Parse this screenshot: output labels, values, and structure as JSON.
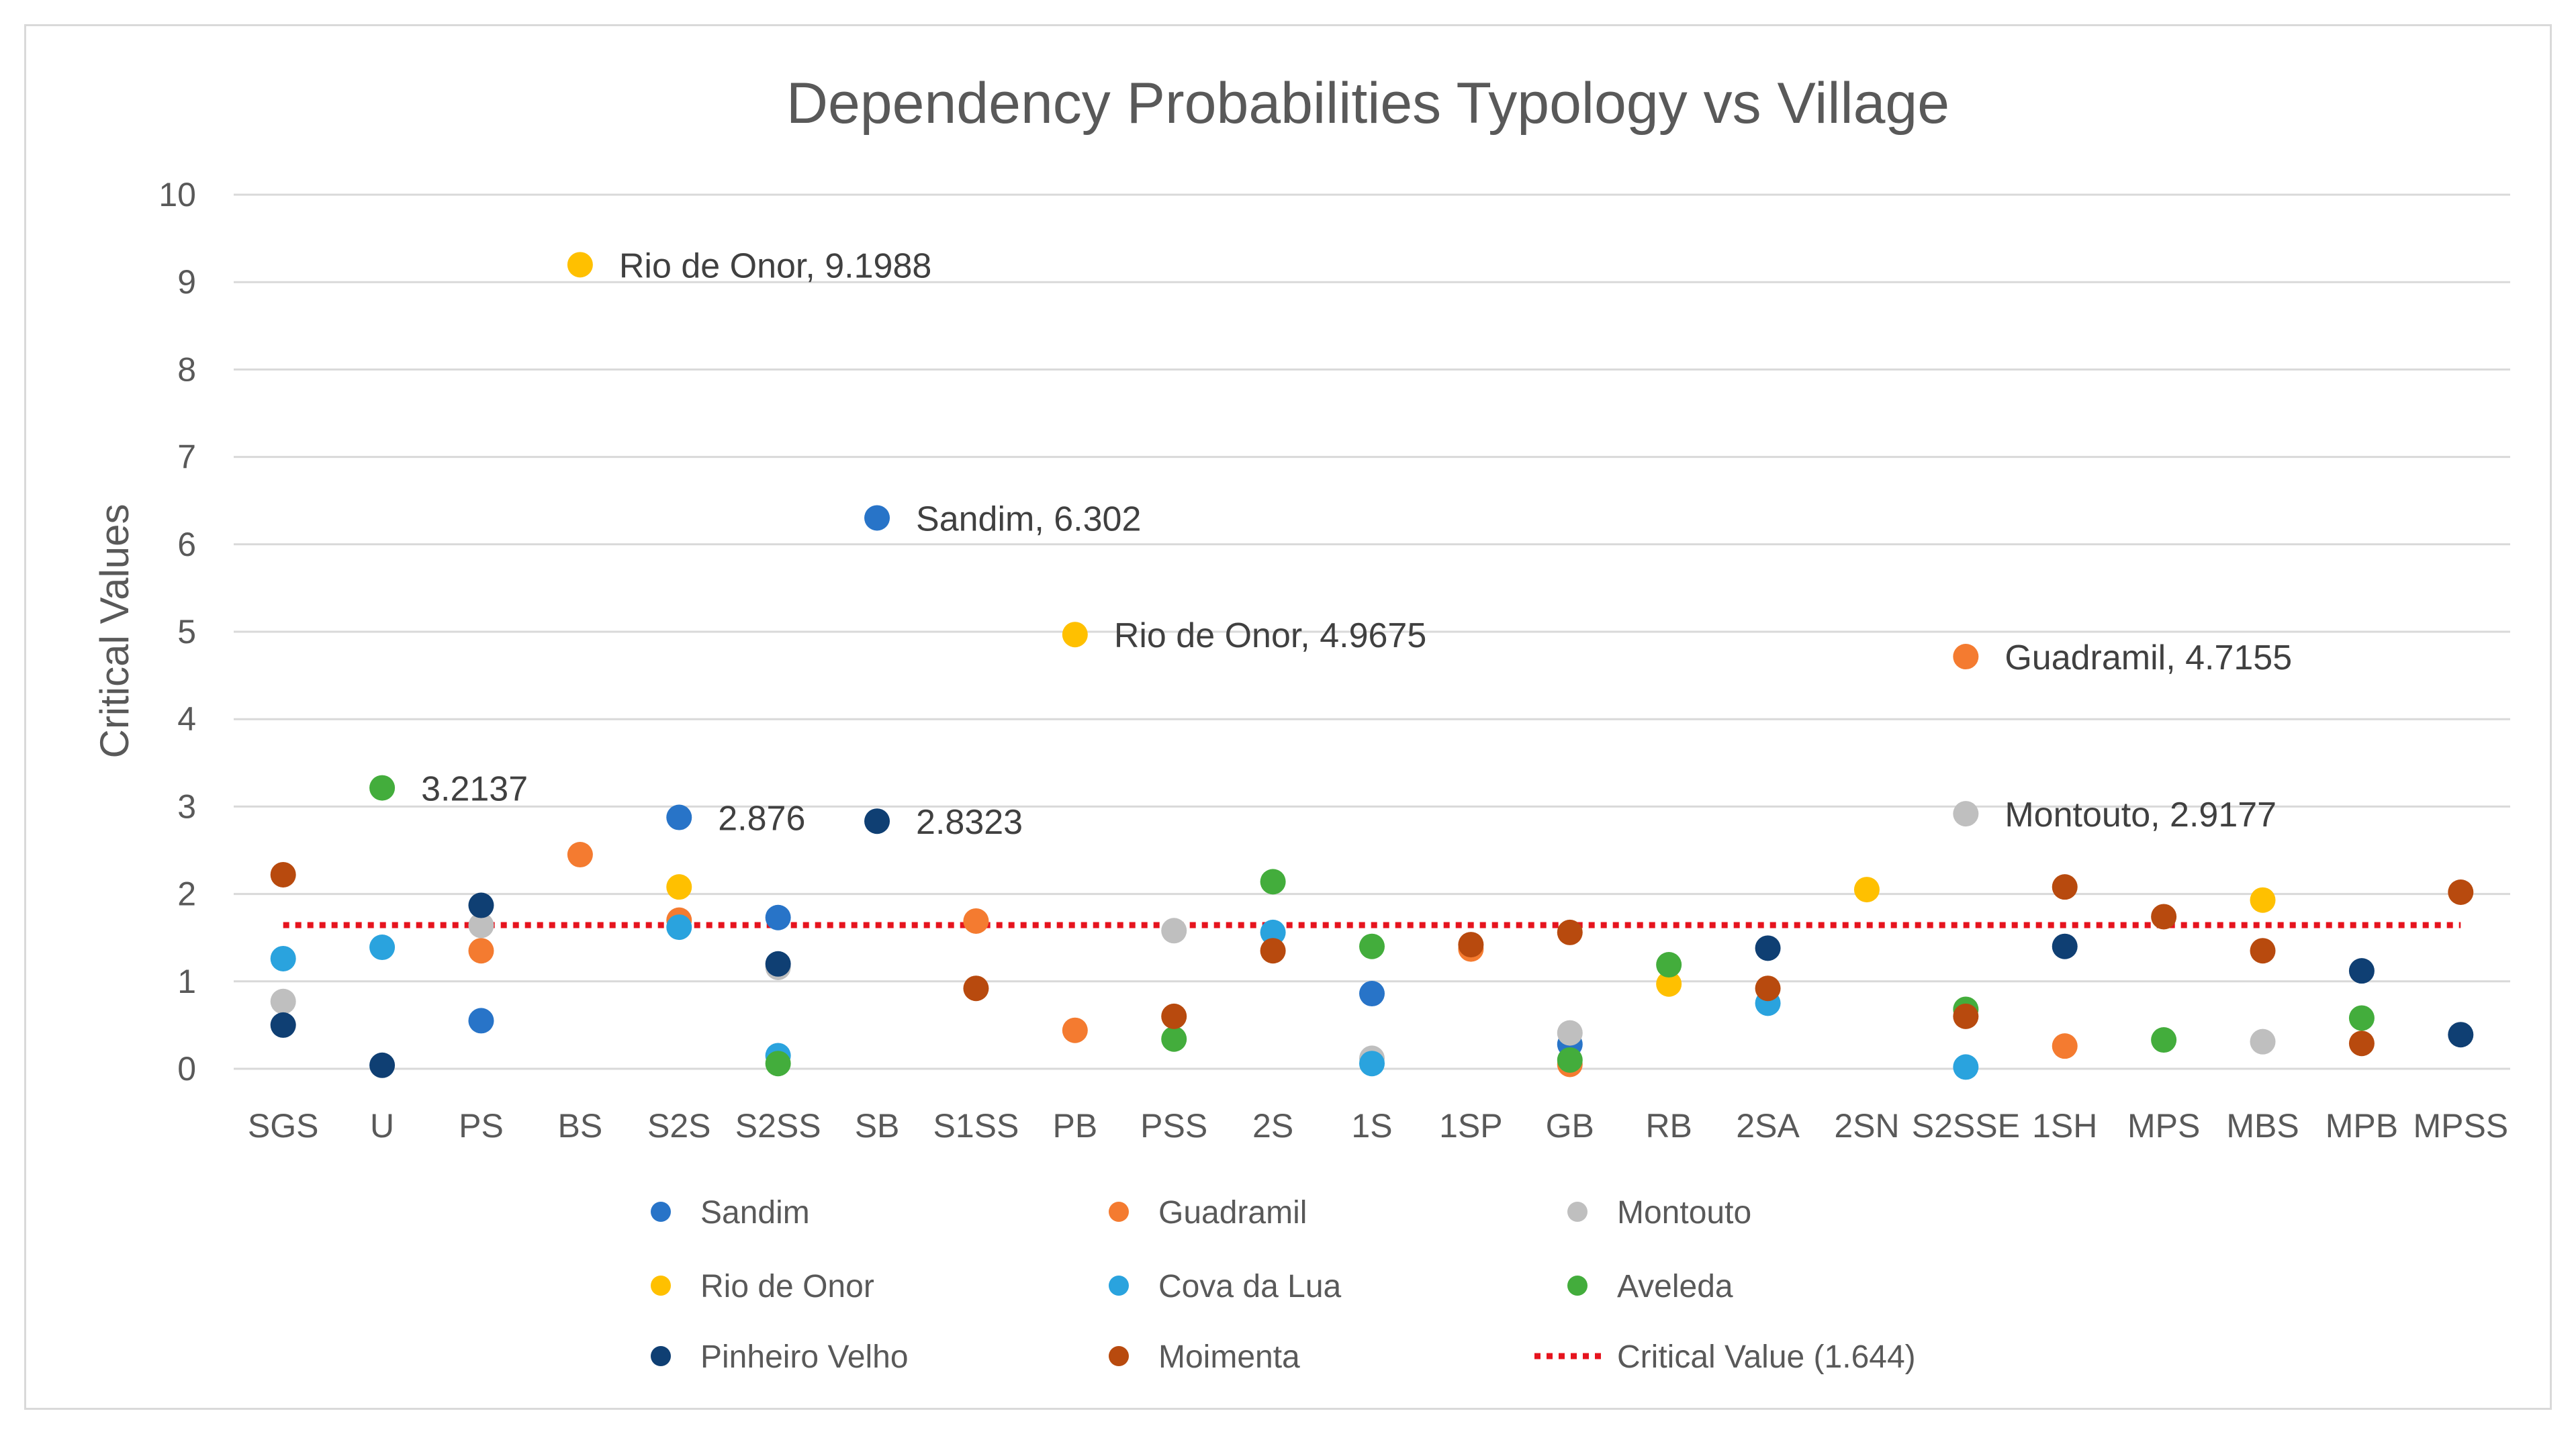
{
  "chart_data": {
    "type": "scatter",
    "title": "Dependency Probabilities Typology vs Village",
    "xlabel": "",
    "ylabel": "Critical Values",
    "ylim": [
      0,
      10
    ],
    "yticks": [
      0,
      1,
      2,
      3,
      4,
      5,
      6,
      7,
      8,
      9,
      10
    ],
    "grid": true,
    "legend_position": "bottom",
    "categories": [
      "SGS",
      "U",
      "PS",
      "BS",
      "S2S",
      "S2SS",
      "SB",
      "S1SS",
      "PB",
      "PSS",
      "2S",
      "1S",
      "1SP",
      "GB",
      "RB",
      "2SA",
      "2SN",
      "S2SSE",
      "1SH",
      "MPS",
      "MBS",
      "MPB",
      "MPSS"
    ],
    "series": [
      {
        "name": "Sandim",
        "color": "#2874c8",
        "values": [
          null,
          null,
          0.55,
          null,
          2.876,
          1.73,
          6.302,
          null,
          null,
          null,
          null,
          0.86,
          null,
          0.28,
          null,
          null,
          null,
          null,
          null,
          null,
          null,
          null,
          null
        ]
      },
      {
        "name": "Guadramil",
        "color": "#f47b30",
        "values": [
          null,
          null,
          1.35,
          2.45,
          1.7,
          null,
          null,
          1.69,
          0.44,
          null,
          null,
          null,
          1.37,
          0.05,
          null,
          null,
          null,
          4.7155,
          0.26,
          null,
          null,
          null,
          null
        ]
      },
      {
        "name": "Montouto",
        "color": "#bfbfbf",
        "values": [
          0.77,
          null,
          1.64,
          null,
          null,
          1.16,
          null,
          null,
          null,
          1.58,
          null,
          0.12,
          null,
          0.41,
          null,
          null,
          null,
          2.9177,
          null,
          null,
          0.31,
          null,
          null
        ]
      },
      {
        "name": "Rio de Onor",
        "color": "#ffc000",
        "values": [
          null,
          null,
          null,
          9.1988,
          2.08,
          null,
          null,
          null,
          4.9675,
          null,
          null,
          null,
          null,
          null,
          0.97,
          null,
          2.05,
          null,
          null,
          null,
          1.93,
          null,
          null
        ]
      },
      {
        "name": "Cova da Lua",
        "color": "#2aa3de",
        "values": [
          1.26,
          1.39,
          null,
          null,
          1.62,
          0.15,
          null,
          null,
          null,
          null,
          1.56,
          0.06,
          null,
          null,
          null,
          0.75,
          null,
          0.02,
          null,
          null,
          null,
          null,
          null
        ]
      },
      {
        "name": "Aveleda",
        "color": "#43ad3c",
        "values": [
          null,
          3.2137,
          null,
          null,
          null,
          0.06,
          null,
          null,
          null,
          0.34,
          2.14,
          1.4,
          null,
          0.1,
          1.19,
          null,
          null,
          0.68,
          null,
          0.33,
          null,
          0.58,
          null
        ]
      },
      {
        "name": "Pinheiro Velho",
        "color": "#0f3f73",
        "values": [
          0.5,
          0.04,
          1.87,
          null,
          null,
          1.2,
          2.8323,
          null,
          null,
          null,
          null,
          null,
          null,
          null,
          null,
          1.38,
          null,
          null,
          1.4,
          null,
          null,
          1.12,
          0.39
        ]
      },
      {
        "name": "Moimenta",
        "color": "#b84a0e",
        "values": [
          2.22,
          null,
          null,
          null,
          null,
          null,
          null,
          0.92,
          null,
          0.6,
          1.35,
          null,
          1.42,
          1.56,
          null,
          0.92,
          null,
          0.6,
          2.08,
          1.74,
          1.35,
          0.29,
          2.02
        ]
      }
    ],
    "reference_line": {
      "name": "Critical Value (1.644)",
      "value": 1.644,
      "color": "#e6141e",
      "style": "dotted"
    },
    "annotations": [
      {
        "series": "Rio de Onor",
        "category": "BS",
        "value": 9.1988,
        "text": "Rio de Onor, 9.1988"
      },
      {
        "series": "Sandim",
        "category": "SB",
        "value": 6.302,
        "text": "Sandim, 6.302"
      },
      {
        "series": "Rio de Onor",
        "category": "PB",
        "value": 4.9675,
        "text": "Rio de Onor, 4.9675"
      },
      {
        "series": "Guadramil",
        "category": "S2SSE",
        "value": 4.7155,
        "text": "Guadramil, 4.7155"
      },
      {
        "series": "Aveleda",
        "category": "U",
        "value": 3.2137,
        "text": "3.2137"
      },
      {
        "series": "Sandim",
        "category": "S2S",
        "value": 2.876,
        "text": "2.876"
      },
      {
        "series": "Pinheiro Velho",
        "category": "SB",
        "value": 2.8323,
        "text": "2.8323"
      },
      {
        "series": "Montouto",
        "category": "S2SSE",
        "value": 2.9177,
        "text": "Montouto, 2.9177"
      }
    ]
  }
}
